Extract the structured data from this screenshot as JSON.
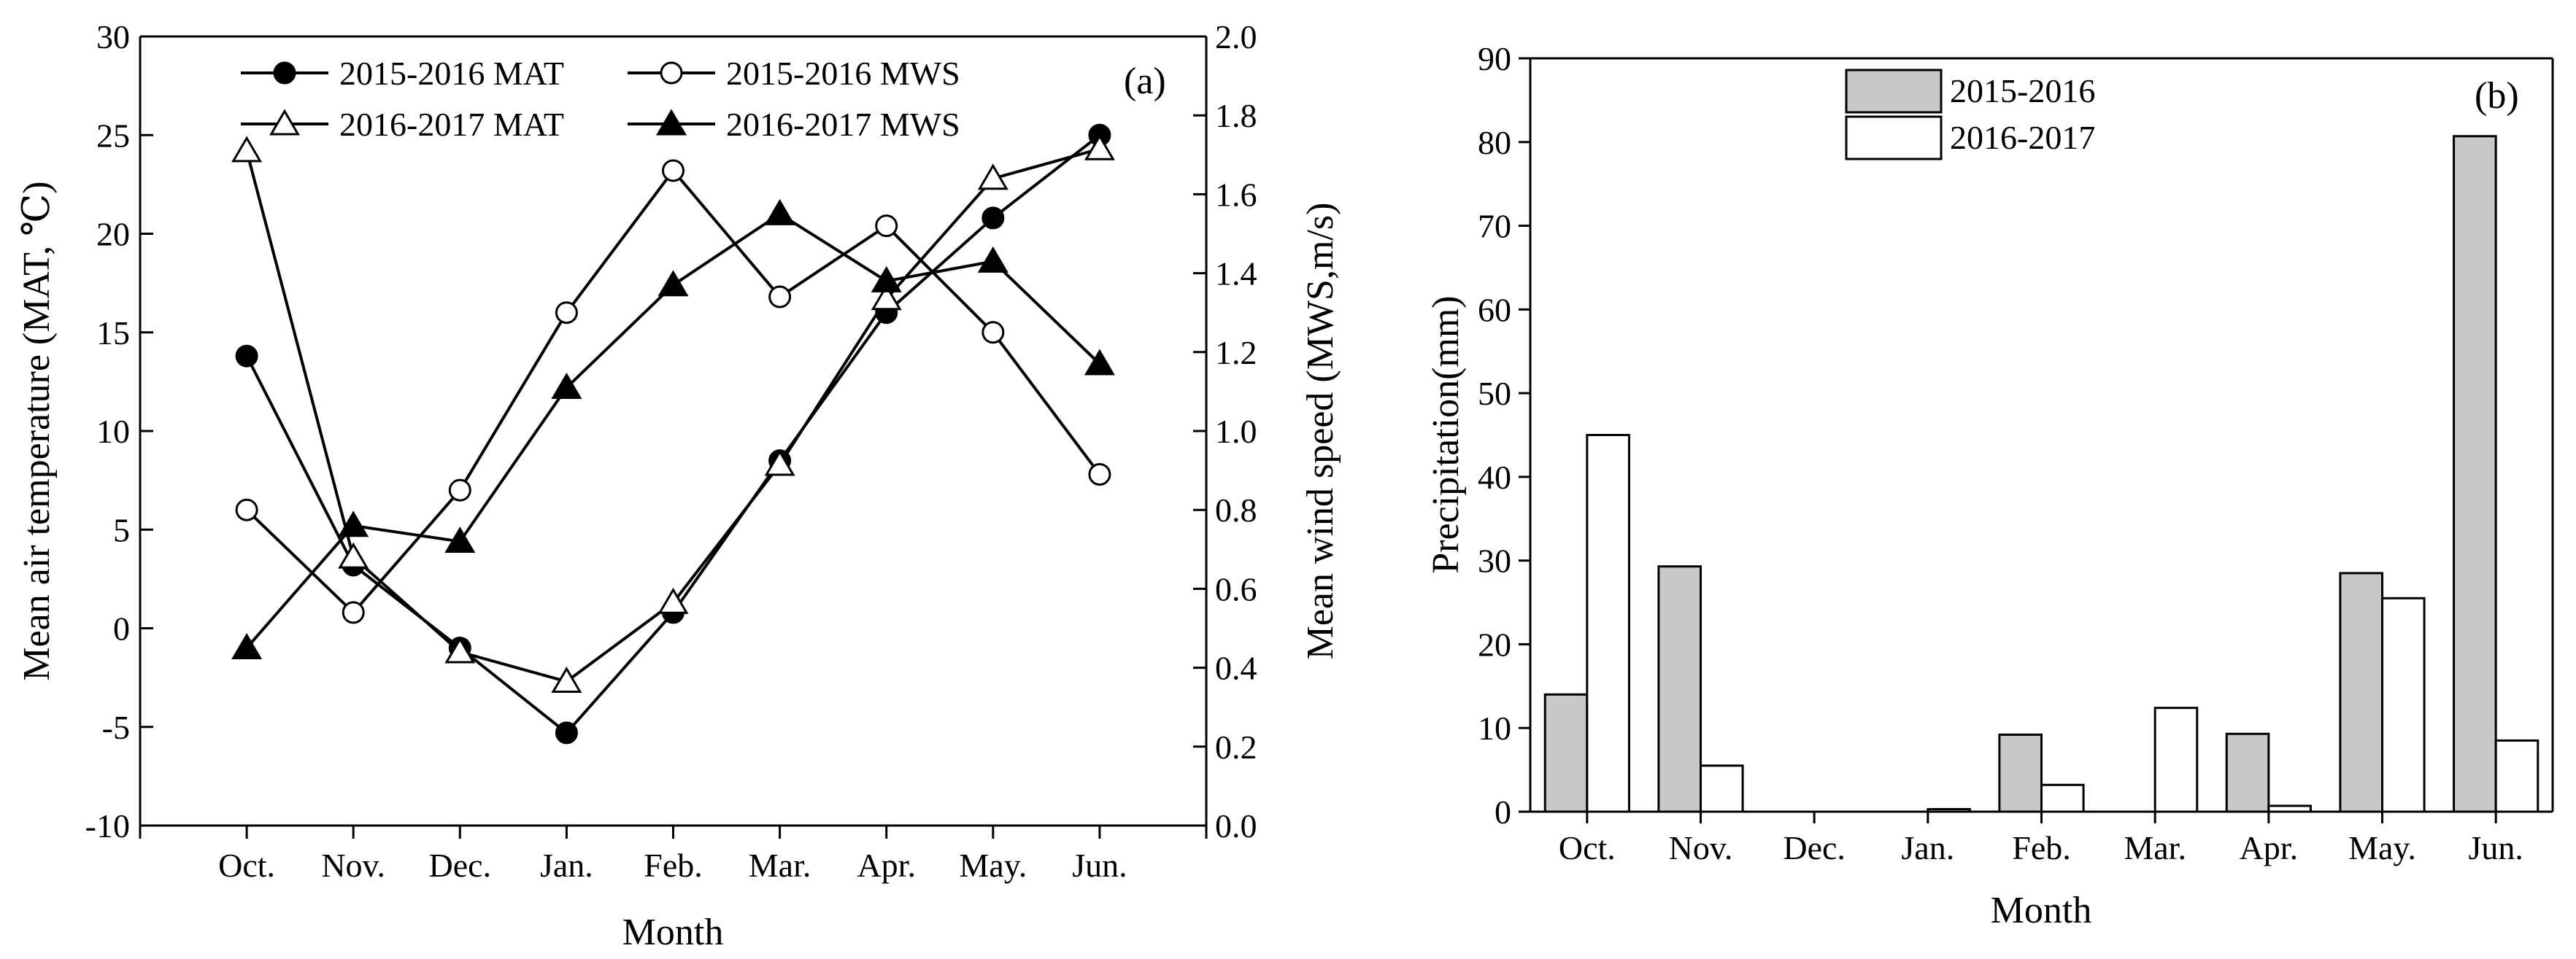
{
  "chart_data": [
    {
      "type": "line",
      "panel": "(a)",
      "categories": [
        "Oct.",
        "Nov.",
        "Dec.",
        "Jan.",
        "Feb.",
        "Mar.",
        "Apr.",
        "May.",
        "Jun."
      ],
      "xlabel": "Month",
      "ylabel": "Mean air temperature (MAT, ℃)",
      "y2label": "Mean wind speed (MWS,m/s)",
      "ylim": [
        -10,
        30
      ],
      "yticks": [
        -10,
        -5,
        0,
        5,
        10,
        15,
        20,
        25,
        30
      ],
      "y2lim": [
        0.0,
        2.0
      ],
      "y2ticks": [
        0.0,
        0.2,
        0.4,
        0.6,
        0.8,
        1.0,
        1.2,
        1.4,
        1.6,
        1.8,
        2.0
      ],
      "legend_position": "top",
      "series": [
        {
          "name": "2015-2016 MAT",
          "axis": "left",
          "marker": "circle",
          "filled": true,
          "values": [
            13.8,
            3.2,
            -1.0,
            -5.3,
            0.8,
            8.5,
            16.0,
            20.8,
            25.0
          ]
        },
        {
          "name": "2015-2016 MWS",
          "axis": "right",
          "marker": "circle",
          "filled": false,
          "values": [
            0.8,
            0.54,
            0.85,
            1.3,
            1.66,
            1.34,
            1.52,
            1.25,
            0.89
          ]
        },
        {
          "name": "2016-2017 MAT",
          "axis": "left",
          "marker": "triangle",
          "filled": false,
          "values": [
            24.2,
            3.6,
            -1.2,
            -2.7,
            1.3,
            8.3,
            16.7,
            22.8,
            24.3
          ]
        },
        {
          "name": "2016-2017 MWS",
          "axis": "right",
          "marker": "triangle",
          "filled": true,
          "values": [
            0.45,
            0.76,
            0.72,
            1.11,
            1.37,
            1.55,
            1.38,
            1.43,
            1.17
          ]
        }
      ]
    },
    {
      "type": "bar",
      "panel": "(b)",
      "categories": [
        "Oct.",
        "Nov.",
        "Dec.",
        "Jan.",
        "Feb.",
        "Mar.",
        "Apr.",
        "May.",
        "Jun."
      ],
      "xlabel": "Month",
      "ylabel": "Precipitation(mm)",
      "ylim": [
        0,
        90
      ],
      "yticks": [
        0,
        10,
        20,
        30,
        40,
        50,
        60,
        70,
        80,
        90
      ],
      "legend_position": "top-left",
      "series": [
        {
          "name": "2015-2016",
          "color": "#c8c8c8",
          "values": [
            14.0,
            29.3,
            0,
            0,
            9.2,
            0,
            9.3,
            28.5,
            80.7
          ]
        },
        {
          "name": "2016-2017",
          "color": "#ffffff",
          "values": [
            45.0,
            5.5,
            0,
            0.3,
            3.2,
            12.4,
            0.7,
            25.5,
            8.5
          ]
        }
      ]
    }
  ]
}
